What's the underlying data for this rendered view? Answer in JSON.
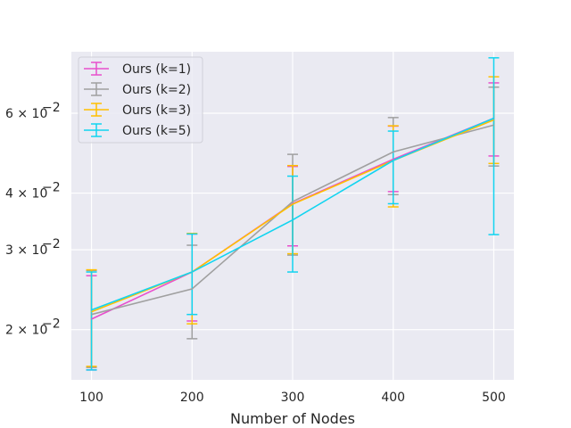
{
  "chart_data": {
    "type": "line",
    "title": "",
    "xlabel": "Number of Nodes",
    "ylabel": "",
    "yscale": "log",
    "grid": true,
    "legend_position": "top-left",
    "x": [
      100,
      200,
      300,
      400,
      500
    ],
    "xticks": [
      "100",
      "200",
      "300",
      "400",
      "500"
    ],
    "xlim": [
      80,
      520
    ],
    "ylim": [
      0.0155,
      0.082
    ],
    "yticks": [
      {
        "value": 0.02,
        "base": "2",
        "exp": "−2"
      },
      {
        "value": 0.03,
        "base": "3",
        "exp": "−2"
      },
      {
        "value": 0.04,
        "base": "4",
        "exp": "−2"
      },
      {
        "value": 0.06,
        "base": "6",
        "exp": "−2"
      }
    ],
    "series": [
      {
        "name": "Ours (k=1)",
        "color": "#e84fcd",
        "values": [
          0.0211,
          0.0268,
          0.0379,
          0.0475,
          0.0585
        ],
        "err_low": [
          0.0163,
          0.0209,
          0.0306,
          0.0403,
          0.0483
        ],
        "err_high": [
          0.0263,
          0.0325,
          0.0458,
          0.0562,
          0.07
        ]
      },
      {
        "name": "Ours (k=2)",
        "color": "#a0a0a0",
        "values": [
          0.0216,
          0.0246,
          0.0383,
          0.0493,
          0.0565
        ],
        "err_low": [
          0.0165,
          0.0191,
          0.0292,
          0.0397,
          0.0459
        ],
        "err_high": [
          0.027,
          0.0307,
          0.0487,
          0.0587,
          0.0685
        ]
      },
      {
        "name": "Ours (k=3)",
        "color": "#ffc000",
        "values": [
          0.0219,
          0.0268,
          0.0378,
          0.0472,
          0.058
        ],
        "err_low": [
          0.0166,
          0.0206,
          0.0294,
          0.0373,
          0.0465
        ],
        "err_high": [
          0.0271,
          0.0326,
          0.046,
          0.0563,
          0.0722
        ]
      },
      {
        "name": "Ours (k=5)",
        "color": "#11d4f0",
        "values": [
          0.0221,
          0.0268,
          0.0349,
          0.0472,
          0.0585
        ],
        "err_low": [
          0.0163,
          0.0216,
          0.0268,
          0.0379,
          0.0324
        ],
        "err_high": [
          0.0268,
          0.0325,
          0.0436,
          0.0548,
          0.0795
        ]
      }
    ]
  }
}
